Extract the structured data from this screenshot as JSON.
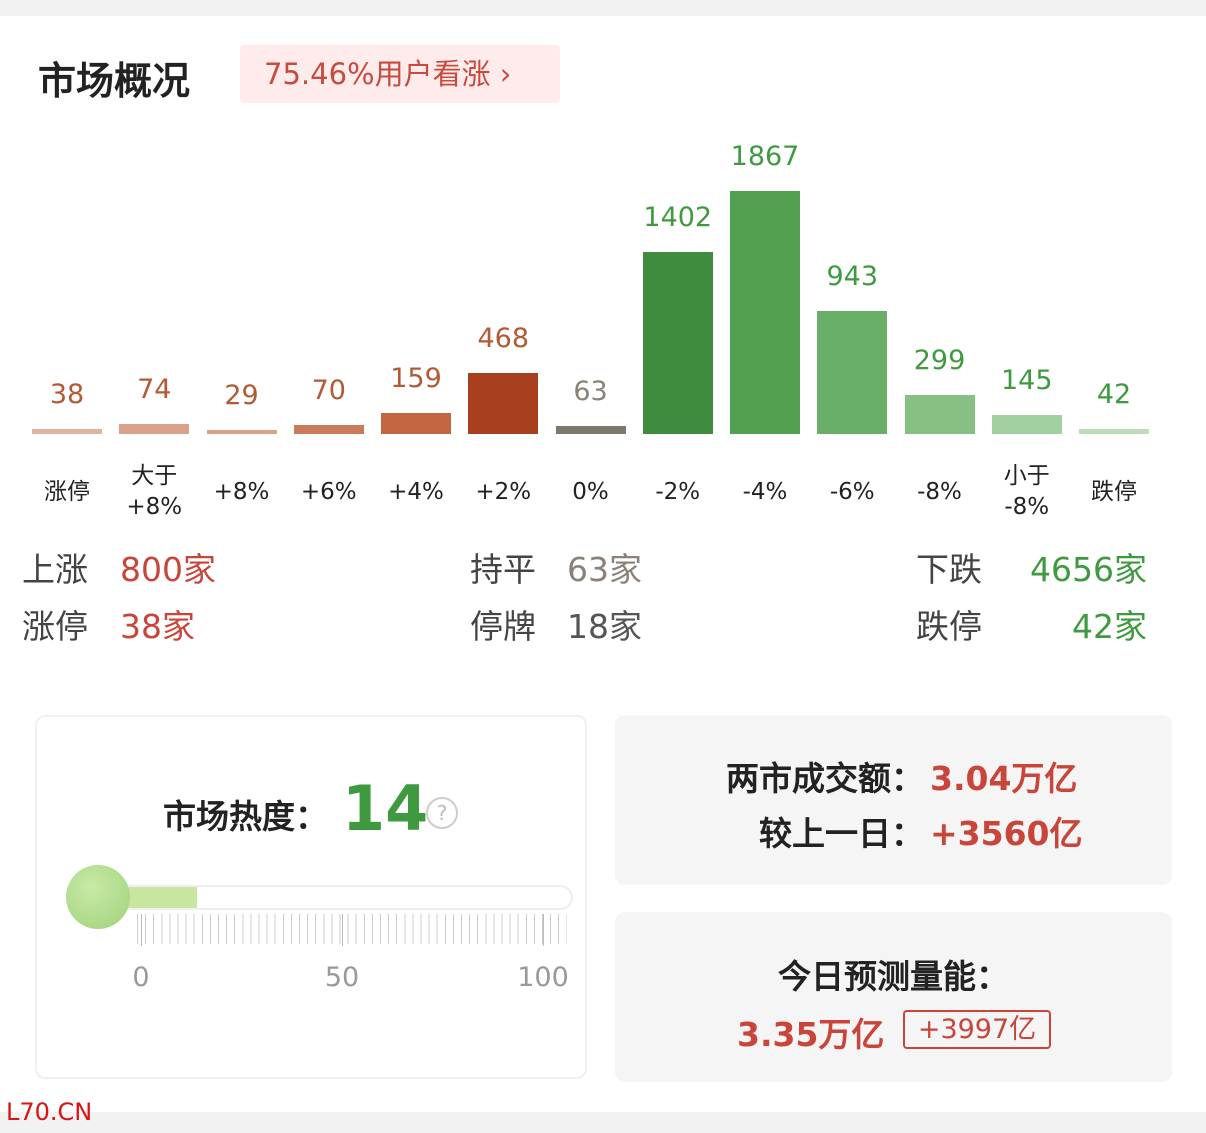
{
  "header": {
    "title": "市场概况",
    "badge": "75.46%用户看涨"
  },
  "chart_data": {
    "type": "bar",
    "categories": [
      "涨停",
      "大于\n+8%",
      "+8%",
      "+6%",
      "+4%",
      "+2%",
      "0%",
      "-2%",
      "-4%",
      "-6%",
      "-8%",
      "小于\n-8%",
      "跌停"
    ],
    "values": [
      38,
      74,
      29,
      70,
      159,
      468,
      63,
      1402,
      1867,
      943,
      299,
      145,
      42
    ],
    "colors": [
      "#e2b3a3",
      "#d9a08a",
      "#d9a08a",
      "#c97a5c",
      "#c1663f",
      "#a8401d",
      "#7f786e",
      "#3f8c3e",
      "#52a050",
      "#68ae66",
      "#86c083",
      "#a3d0a0",
      "#bcdcba"
    ],
    "label_colors": [
      "#b25a34",
      "#b25a34",
      "#b25a34",
      "#b25a34",
      "#b25a34",
      "#b25a34",
      "#8a8278",
      "#3f9a3f",
      "#3f9a3f",
      "#3f9a3f",
      "#3f9a3f",
      "#3f9a3f",
      "#3f9a3f"
    ]
  },
  "summary": {
    "rows": [
      [
        {
          "label": "上涨",
          "value": "800家"
        },
        {
          "label": "持平",
          "value": "63家"
        },
        {
          "label": "下跌",
          "value": "4656家"
        }
      ],
      [
        {
          "label": "涨停",
          "value": "38家"
        },
        {
          "label": "停牌",
          "value": "18家"
        },
        {
          "label": "跌停",
          "value": "42家"
        }
      ]
    ]
  },
  "heat": {
    "label": "市场热度：",
    "value": 14,
    "xlim": [
      0,
      100
    ],
    "xticks": [
      0,
      50,
      100
    ]
  },
  "turnover": {
    "label": "两市成交额：",
    "value": "3.04万亿",
    "change_label": "较上一日：",
    "change": "+3560亿"
  },
  "forecast": {
    "label": "今日预测量能：",
    "value": "3.35万亿",
    "change": "+3997亿"
  },
  "watermark": "L70.CN"
}
